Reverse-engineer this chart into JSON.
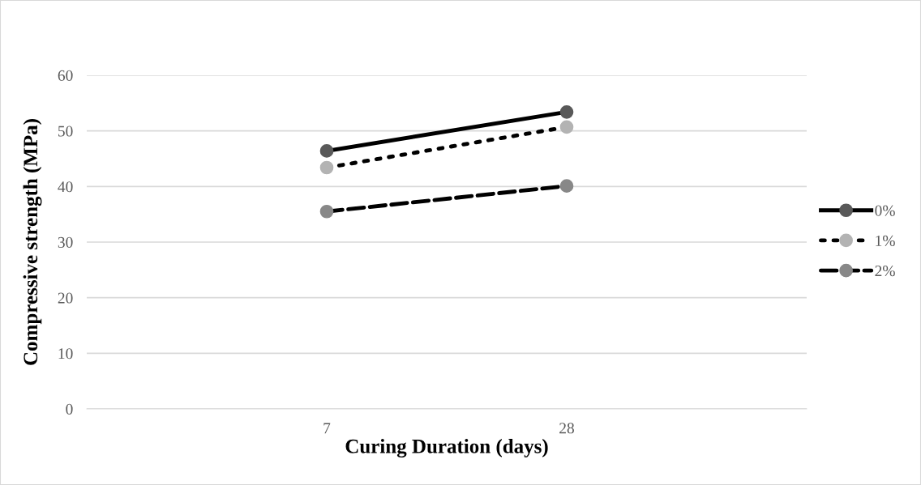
{
  "chart_data": {
    "type": "line",
    "xlabel": "Curing Duration (days)",
    "ylabel": "Compressive strength (MPa)",
    "categories": [
      "7",
      "28"
    ],
    "series": [
      {
        "name": "0%",
        "color": "#595959",
        "line_style": "solid",
        "values": [
          46.4,
          53.4
        ]
      },
      {
        "name": "1%",
        "color": "#b3b3b3",
        "line_style": "dotted",
        "values": [
          43.4,
          50.7
        ]
      },
      {
        "name": "2%",
        "color": "#888888",
        "line_style": "dashed",
        "values": [
          35.5,
          40.1
        ]
      }
    ],
    "ylim": [
      0,
      60
    ],
    "yticks": [
      0,
      10,
      20,
      30,
      40,
      50,
      60
    ],
    "grid": "y",
    "legend": "right",
    "marker": "circle"
  }
}
